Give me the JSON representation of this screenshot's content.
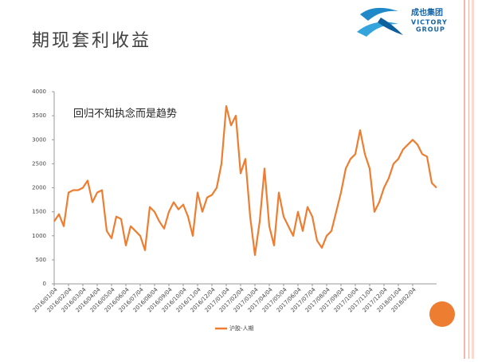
{
  "logo": {
    "name": "成也集团",
    "line1": "VICTORY",
    "line2": "GROUP"
  },
  "chart_data": {
    "type": "line",
    "title": "期现套利收益",
    "annotation": "回归不知执念而是趋势",
    "categories": [
      "2016/01/04",
      null,
      null,
      "2016/02/04",
      null,
      null,
      "2016/03/04",
      null,
      null,
      "2016/04/04",
      null,
      null,
      "2016/05/04",
      null,
      null,
      "2016/06/04",
      null,
      null,
      "2016/07/04",
      null,
      null,
      "2016/08/04",
      null,
      null,
      "2016/09/04",
      null,
      null,
      "2016/10/04",
      null,
      null,
      "2016/11/04",
      null,
      null,
      "2016/12/04",
      null,
      null,
      "2017/01/04",
      null,
      null,
      "2017/02/04",
      null,
      null,
      "2017/03/04",
      null,
      null,
      "2017/04/04",
      null,
      null,
      "2017/05/04",
      null,
      null,
      "2017/06/04",
      null,
      null,
      "2017/07/04",
      null,
      null,
      "2017/08/04",
      null,
      null,
      "2017/09/04",
      null,
      null,
      "2017/10/04",
      null,
      null,
      "2017/11/04",
      null,
      null,
      "2017/12/04",
      null,
      null,
      "2018/01/04",
      null,
      null,
      "2018/02/04",
      null,
      null,
      null,
      null,
      null
    ],
    "series": [
      {
        "name": "沪胶-人期",
        "color": "#ed7d31",
        "values": [
          1300,
          1450,
          1200,
          1900,
          1950,
          1950,
          2000,
          2150,
          1700,
          1900,
          1950,
          1100,
          950,
          1400,
          1350,
          800,
          1200,
          1100,
          1000,
          700,
          1600,
          1500,
          1300,
          1150,
          1500,
          1700,
          1550,
          1650,
          1400,
          1000,
          1900,
          1500,
          1800,
          1850,
          2000,
          2500,
          3700,
          3300,
          3500,
          2300,
          2600,
          1400,
          600,
          1300,
          2400,
          1200,
          800,
          1900,
          1400,
          1200,
          1000,
          1500,
          1100,
          1600,
          1400,
          900,
          750,
          1000,
          1100,
          1500,
          1900,
          2400,
          2600,
          2700,
          3200,
          2700,
          2400,
          1500,
          1700,
          2000,
          2200,
          2500,
          2600,
          2800,
          2900,
          3000,
          2900,
          2700,
          2650,
          2100,
          2000
        ]
      }
    ],
    "ylim": [
      0,
      4000
    ],
    "yticks": [
      0,
      500,
      1000,
      1500,
      2000,
      2500,
      3000,
      3500,
      4000
    ],
    "grid": false
  }
}
